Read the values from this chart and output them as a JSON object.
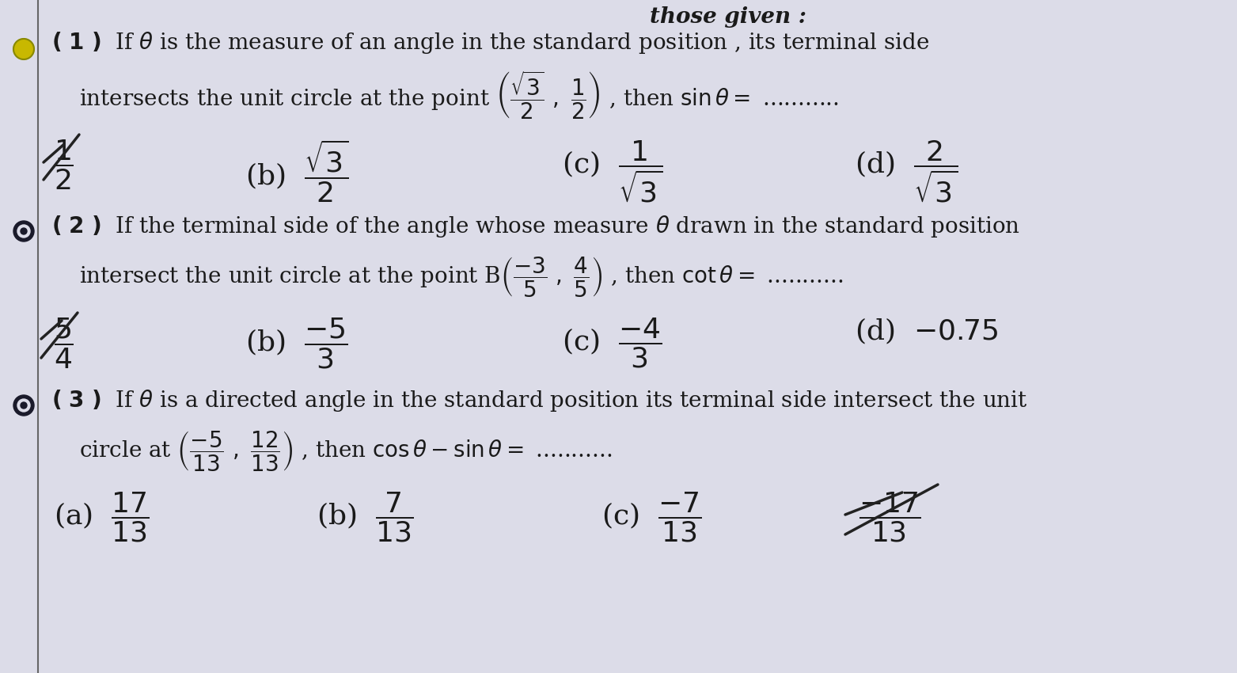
{
  "bg_color": "#dcdce8",
  "text_color": "#1a1a1a",
  "bullet_color_1": "#c8b800",
  "line_color": "#555555",
  "strike_color": "#2a2a2a",
  "title": "those given :",
  "dots": "...........",
  "q1_l1": "( 1 )  If θ is the measure of an angle in the standard position , its terminal side",
  "q2_l1": "( 2 )  If the terminal side of the angle whose measure θ drawn in the standard position",
  "q3_l1": "( 3 )  If θ is a directed angle in the standard position its terminal side intersect the unit"
}
